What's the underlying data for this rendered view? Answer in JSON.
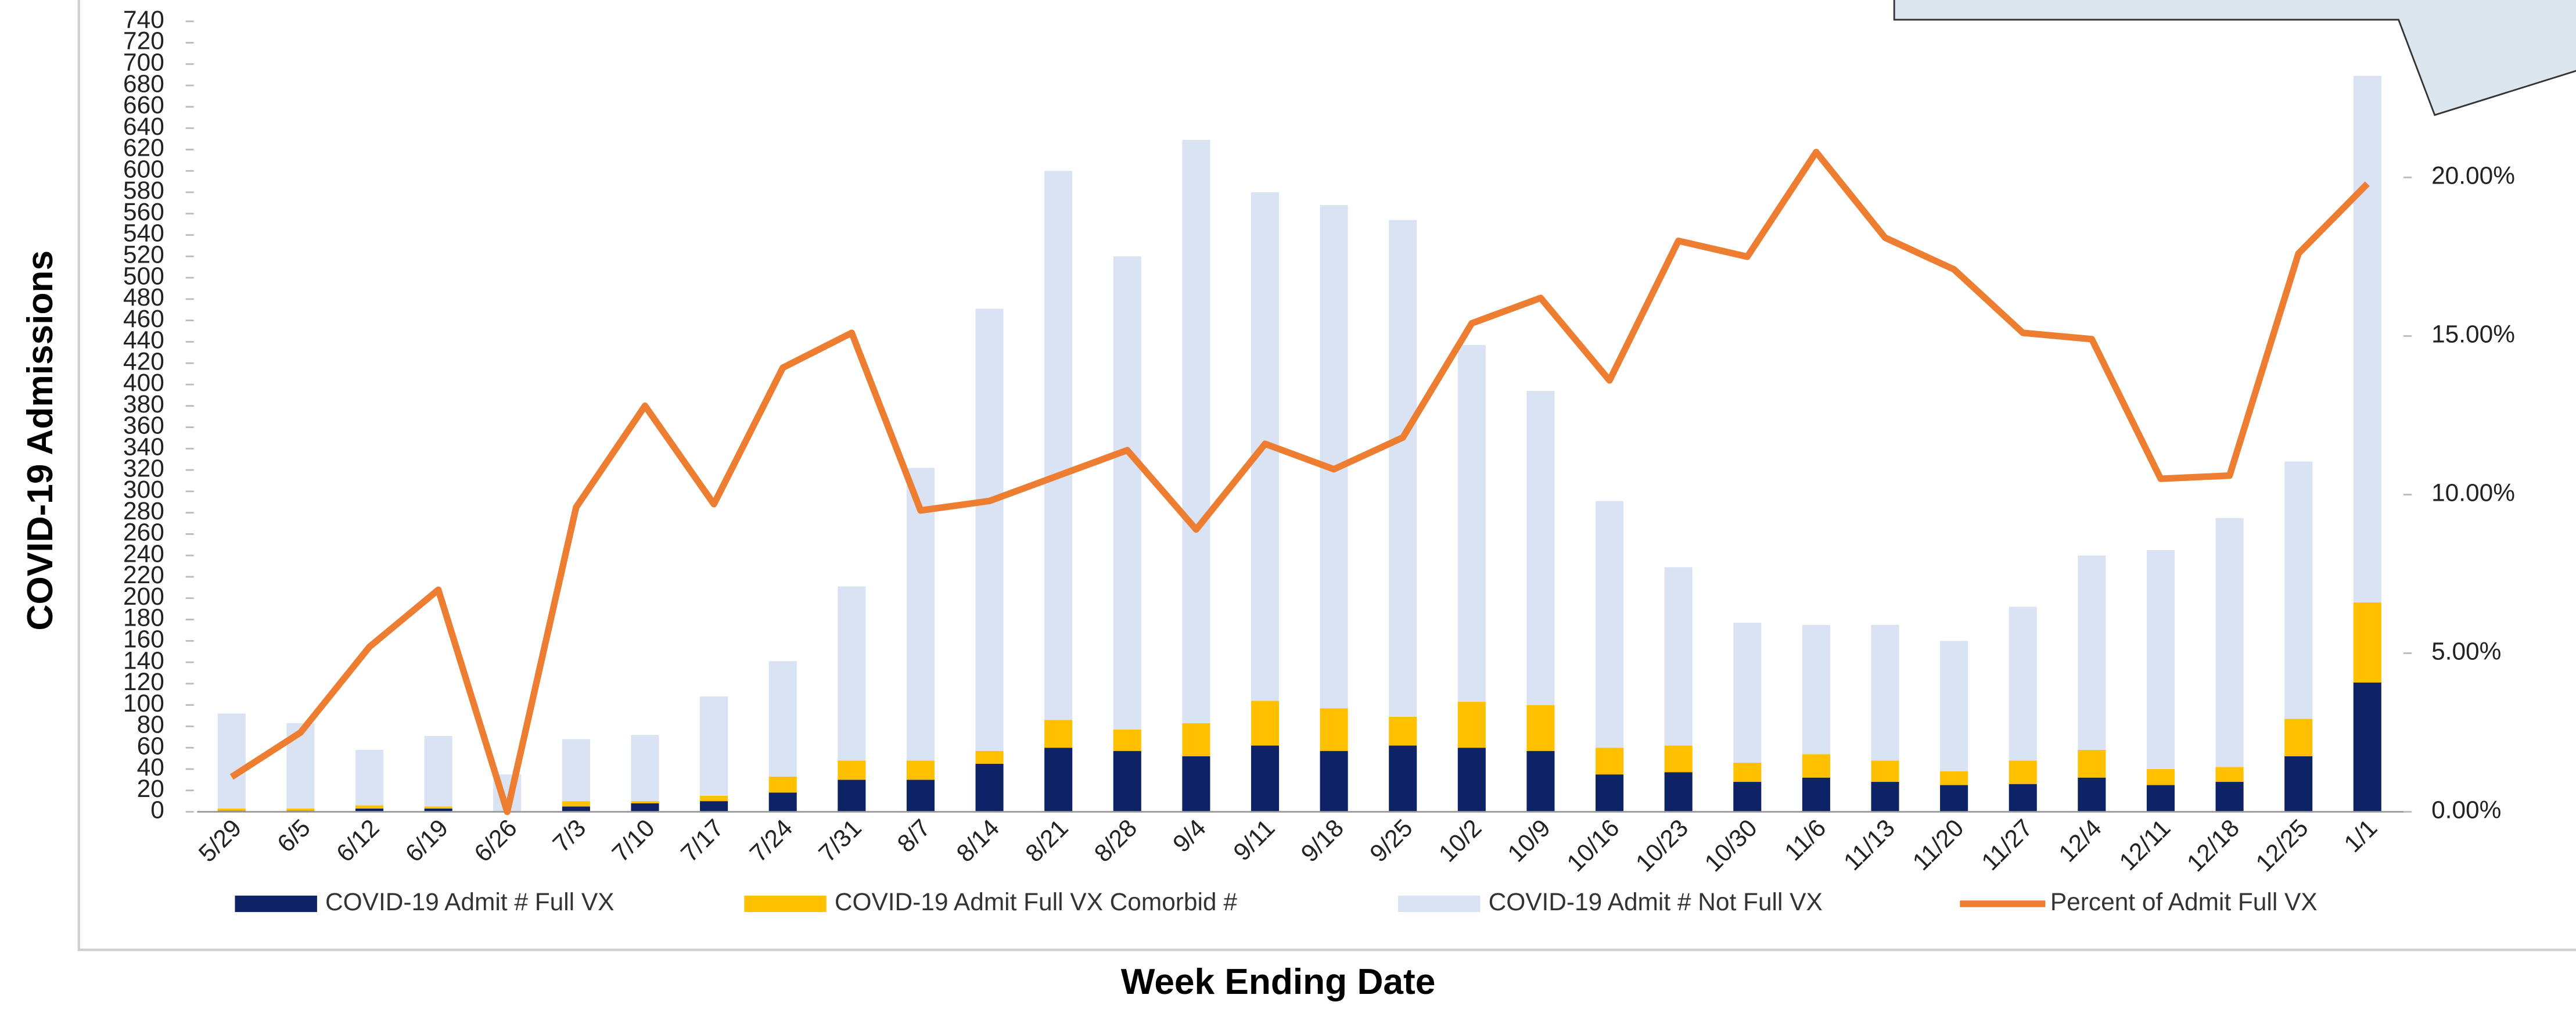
{
  "chart_data": {
    "type": "stacked_bar_line",
    "y_label": "COVID-19 Admissions",
    "x_label": "Week Ending Date",
    "categories": [
      "5/29",
      "6/5",
      "6/12",
      "6/19",
      "6/26",
      "7/3",
      "7/10",
      "7/17",
      "7/24",
      "7/31",
      "8/7",
      "8/14",
      "8/21",
      "8/28",
      "9/4",
      "9/11",
      "9/18",
      "9/25",
      "10/2",
      "10/9",
      "10/16",
      "10/23",
      "10/30",
      "11/6",
      "11/13",
      "11/20",
      "11/27",
      "12/4",
      "12/11",
      "12/18",
      "12/25",
      "1/1"
    ],
    "series": [
      {
        "name": "COVID-19 Admit # Full VX",
        "color": "#0d2366",
        "kind": "bar",
        "values": [
          1,
          1,
          3,
          3,
          0,
          5,
          8,
          10,
          18,
          30,
          30,
          45,
          60,
          57,
          52,
          62,
          57,
          62,
          60,
          57,
          35,
          37,
          28,
          32,
          28,
          25,
          26,
          32,
          25,
          28,
          52,
          121
        ]
      },
      {
        "name": "COVID-19 Admit Full VX Comorbid #",
        "color": "#ffc000",
        "kind": "bar",
        "values": [
          2,
          2,
          3,
          2,
          0,
          5,
          2,
          5,
          15,
          18,
          18,
          12,
          26,
          20,
          31,
          42,
          40,
          27,
          43,
          43,
          25,
          25,
          18,
          22,
          20,
          13,
          22,
          26,
          15,
          14,
          35,
          75
        ]
      },
      {
        "name": "COVID-19 Admit # Not Full VX",
        "color": "#dae3f3",
        "kind": "bar",
        "values": [
          89,
          80,
          52,
          66,
          35,
          58,
          62,
          93,
          108,
          163,
          274,
          414,
          514,
          443,
          546,
          476,
          471,
          465,
          334,
          294,
          231,
          167,
          131,
          121,
          127,
          122,
          144,
          182,
          205,
          233,
          241,
          493
        ]
      },
      {
        "name": "Percent of Admit Full VX",
        "color": "#ed7d31",
        "kind": "line",
        "axis": "y2",
        "values": [
          1.1,
          2.5,
          5.2,
          7.0,
          0,
          9.6,
          12.8,
          9.7,
          14.0,
          15.1,
          9.5,
          9.8,
          10.6,
          11.4,
          8.9,
          11.6,
          10.8,
          11.8,
          15.4,
          16.2,
          13.6,
          18.0,
          17.5,
          20.8,
          18.1,
          17.1,
          15.1,
          14.9,
          10.5,
          10.6,
          17.6,
          19.8
        ]
      }
    ],
    "ylim": [
      0,
      740
    ],
    "yticks": [
      0,
      20,
      40,
      60,
      80,
      100,
      120,
      140,
      160,
      180,
      200,
      220,
      240,
      260,
      280,
      300,
      320,
      340,
      360,
      380,
      400,
      420,
      440,
      460,
      480,
      500,
      520,
      540,
      560,
      580,
      600,
      620,
      640,
      660,
      680,
      700,
      720,
      740
    ],
    "y2lim": [
      0,
      24.92
    ],
    "y2ticks": [
      {
        "value": 0,
        "label": "0.00%"
      },
      {
        "value": 5,
        "label": "5.00%"
      },
      {
        "value": 10,
        "label": "10.00%"
      },
      {
        "value": 15,
        "label": "15.00%"
      },
      {
        "value": 20,
        "label": "20.00%"
      }
    ]
  }
}
